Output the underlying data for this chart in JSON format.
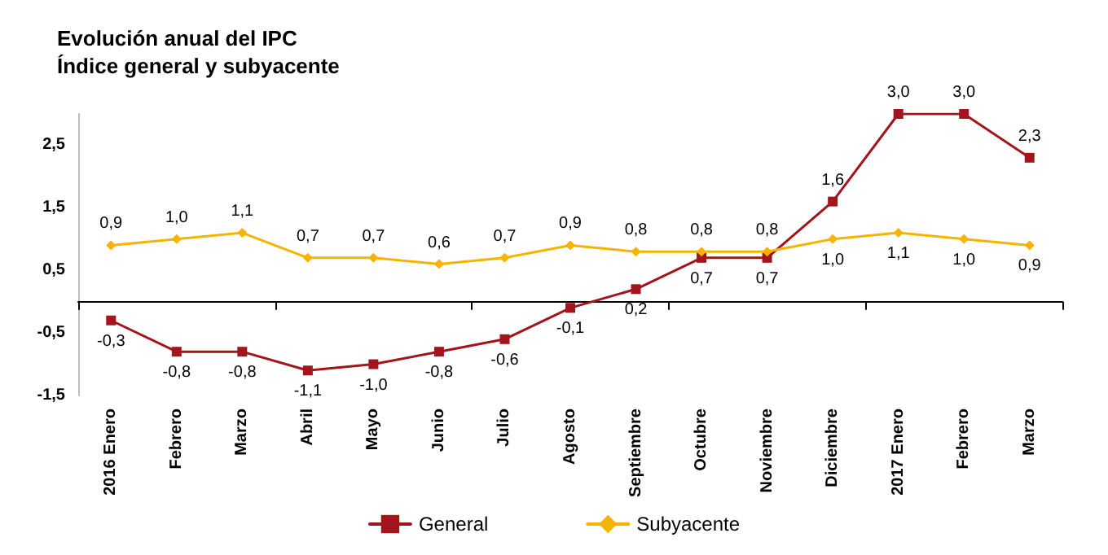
{
  "chart_data": {
    "type": "line",
    "title": "Evolución anual del IPC",
    "subtitle": "Índice general y subyacente",
    "categories": [
      "2016 Enero",
      "Febrero",
      "Marzo",
      "Abril",
      "Mayo",
      "Junio",
      "Julio",
      "Agosto",
      "Septiembre",
      "Octubre",
      "Noviembre",
      "Diciembre",
      "2017 Enero",
      "Febrero",
      "Marzo"
    ],
    "series": [
      {
        "name": "General",
        "color": "#a3151d",
        "marker": "square",
        "values": [
          -0.3,
          -0.8,
          -0.8,
          -1.1,
          -1.0,
          -0.8,
          -0.6,
          -0.1,
          0.2,
          0.7,
          0.7,
          1.6,
          3.0,
          3.0,
          2.3
        ],
        "value_labels": [
          "-0,3",
          "-0,8",
          "-0,8",
          "-1,1",
          "-1,0",
          "-0,8",
          "-0,6",
          "-0,1",
          "0,2",
          "0,7",
          "0,7",
          "1,6",
          "3,0",
          "3,0",
          "2,3"
        ]
      },
      {
        "name": "Subyacente",
        "color": "#f6b400",
        "marker": "diamond",
        "values": [
          0.9,
          1.0,
          1.1,
          0.7,
          0.7,
          0.6,
          0.7,
          0.9,
          0.8,
          0.8,
          0.8,
          1.0,
          1.1,
          1.0,
          0.9
        ],
        "value_labels": [
          "0,9",
          "1,0",
          "1,1",
          "0,7",
          "0,7",
          "0,6",
          "0,7",
          "0,9",
          "0,8",
          "0,8",
          "0,8",
          "1,0",
          "1,1",
          "1,0",
          "0,9"
        ]
      }
    ],
    "ylim": [
      -1.5,
      3.0
    ],
    "yticks": [
      {
        "value": -1.5,
        "label": "-1,5"
      },
      {
        "value": -0.5,
        "label": "-0,5"
      },
      {
        "value": 0.5,
        "label": "0,5"
      },
      {
        "value": 1.5,
        "label": "1,5"
      },
      {
        "value": 2.5,
        "label": "2,5"
      }
    ],
    "grid": false,
    "legend": "bottom",
    "line_style": "solid"
  }
}
